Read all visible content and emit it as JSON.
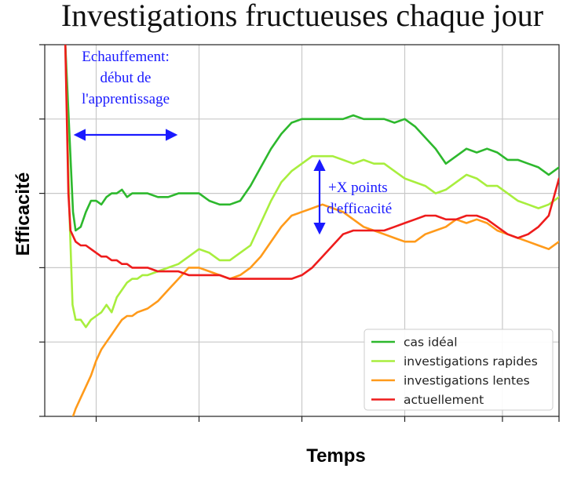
{
  "chart_data": {
    "type": "line",
    "title": "Investigations fructueuses chaque jour",
    "xlabel": "Temps",
    "ylabel": "Efficacité",
    "xlim": [
      0,
      100
    ],
    "ylim": [
      0,
      100
    ],
    "x_ticks": [
      10,
      30,
      50,
      70,
      89,
      100
    ],
    "y_ticks": [
      0,
      20,
      40,
      60,
      80,
      100
    ],
    "x_tick_labels_shown": false,
    "y_tick_labels_shown": false,
    "grid": true,
    "legend_position": "bottom-right",
    "series": [
      {
        "name": "cas idéal",
        "color": "#2db82d",
        "points": [
          [
            4,
            100
          ],
          [
            5.5,
            55
          ],
          [
            6,
            50
          ],
          [
            7,
            51
          ],
          [
            8,
            55
          ],
          [
            9,
            58
          ],
          [
            10,
            58
          ],
          [
            11,
            57
          ],
          [
            12,
            59
          ],
          [
            13,
            60
          ],
          [
            14,
            60
          ],
          [
            15,
            61
          ],
          [
            16,
            59
          ],
          [
            17,
            60
          ],
          [
            18,
            60
          ],
          [
            20,
            60
          ],
          [
            22,
            59
          ],
          [
            24,
            59
          ],
          [
            26,
            60
          ],
          [
            28,
            60
          ],
          [
            30,
            60
          ],
          [
            32,
            58
          ],
          [
            34,
            57
          ],
          [
            36,
            57
          ],
          [
            38,
            58
          ],
          [
            40,
            62
          ],
          [
            42,
            67
          ],
          [
            44,
            72
          ],
          [
            46,
            76
          ],
          [
            48,
            79
          ],
          [
            50,
            80
          ],
          [
            52,
            80
          ],
          [
            54,
            80
          ],
          [
            56,
            80
          ],
          [
            58,
            80
          ],
          [
            60,
            81
          ],
          [
            62,
            80
          ],
          [
            64,
            80
          ],
          [
            66,
            80
          ],
          [
            68,
            79
          ],
          [
            70,
            80
          ],
          [
            72,
            78
          ],
          [
            74,
            75
          ],
          [
            76,
            72
          ],
          [
            78,
            68
          ],
          [
            80,
            70
          ],
          [
            82,
            72
          ],
          [
            84,
            71
          ],
          [
            86,
            72
          ],
          [
            88,
            71
          ],
          [
            90,
            69
          ],
          [
            92,
            69
          ],
          [
            94,
            68
          ],
          [
            96,
            67
          ],
          [
            98,
            65
          ],
          [
            100,
            67
          ]
        ]
      },
      {
        "name": "investigations rapides",
        "color": "#a8ee3e",
        "points": [
          [
            4,
            100
          ],
          [
            4.8,
            55
          ],
          [
            5.4,
            30
          ],
          [
            6,
            26
          ],
          [
            7,
            26
          ],
          [
            8,
            24
          ],
          [
            9,
            26
          ],
          [
            10,
            27
          ],
          [
            11,
            28
          ],
          [
            12,
            30
          ],
          [
            13,
            28
          ],
          [
            14,
            32
          ],
          [
            15,
            34
          ],
          [
            16,
            36
          ],
          [
            17,
            37
          ],
          [
            18,
            37
          ],
          [
            19,
            38
          ],
          [
            20,
            38
          ],
          [
            22,
            39
          ],
          [
            24,
            40
          ],
          [
            26,
            41
          ],
          [
            28,
            43
          ],
          [
            30,
            45
          ],
          [
            32,
            44
          ],
          [
            34,
            42
          ],
          [
            36,
            42
          ],
          [
            38,
            44
          ],
          [
            40,
            46
          ],
          [
            42,
            52
          ],
          [
            44,
            58
          ],
          [
            46,
            63
          ],
          [
            48,
            66
          ],
          [
            50,
            68
          ],
          [
            52,
            70
          ],
          [
            54,
            70
          ],
          [
            56,
            70
          ],
          [
            58,
            69
          ],
          [
            60,
            68
          ],
          [
            62,
            69
          ],
          [
            64,
            68
          ],
          [
            66,
            68
          ],
          [
            68,
            66
          ],
          [
            70,
            64
          ],
          [
            72,
            63
          ],
          [
            74,
            62
          ],
          [
            76,
            60
          ],
          [
            78,
            61
          ],
          [
            80,
            63
          ],
          [
            82,
            65
          ],
          [
            84,
            64
          ],
          [
            86,
            62
          ],
          [
            88,
            62
          ],
          [
            90,
            60
          ],
          [
            92,
            58
          ],
          [
            94,
            57
          ],
          [
            96,
            56
          ],
          [
            98,
            57
          ],
          [
            100,
            59
          ]
        ]
      },
      {
        "name": "investigations lentes",
        "color": "#ff9a1a",
        "points": [
          [
            5.5,
            0
          ],
          [
            6,
            2
          ],
          [
            7,
            5
          ],
          [
            8,
            8
          ],
          [
            9,
            11
          ],
          [
            10,
            15
          ],
          [
            11,
            18
          ],
          [
            12,
            20
          ],
          [
            13,
            22
          ],
          [
            14,
            24
          ],
          [
            15,
            26
          ],
          [
            16,
            27
          ],
          [
            17,
            27
          ],
          [
            18,
            28
          ],
          [
            20,
            29
          ],
          [
            22,
            31
          ],
          [
            24,
            34
          ],
          [
            26,
            37
          ],
          [
            28,
            40
          ],
          [
            30,
            40
          ],
          [
            32,
            39
          ],
          [
            34,
            38
          ],
          [
            36,
            37
          ],
          [
            38,
            38
          ],
          [
            40,
            40
          ],
          [
            42,
            43
          ],
          [
            44,
            47
          ],
          [
            46,
            51
          ],
          [
            48,
            54
          ],
          [
            50,
            55
          ],
          [
            52,
            56
          ],
          [
            54,
            57
          ],
          [
            56,
            56
          ],
          [
            58,
            55
          ],
          [
            60,
            53
          ],
          [
            62,
            51
          ],
          [
            64,
            50
          ],
          [
            66,
            49
          ],
          [
            68,
            48
          ],
          [
            70,
            47
          ],
          [
            72,
            47
          ],
          [
            74,
            49
          ],
          [
            76,
            50
          ],
          [
            78,
            51
          ],
          [
            80,
            53
          ],
          [
            82,
            52
          ],
          [
            84,
            53
          ],
          [
            86,
            52
          ],
          [
            88,
            50
          ],
          [
            90,
            49
          ],
          [
            92,
            48
          ],
          [
            94,
            47
          ],
          [
            96,
            46
          ],
          [
            98,
            45
          ],
          [
            100,
            47
          ]
        ]
      },
      {
        "name": "actuellement",
        "color": "#ee1c1c",
        "points": [
          [
            4,
            100
          ],
          [
            4.6,
            60
          ],
          [
            5,
            50
          ],
          [
            6,
            47
          ],
          [
            7,
            46
          ],
          [
            8,
            46
          ],
          [
            9,
            45
          ],
          [
            10,
            44
          ],
          [
            11,
            43
          ],
          [
            12,
            43
          ],
          [
            13,
            42
          ],
          [
            14,
            42
          ],
          [
            15,
            41
          ],
          [
            16,
            41
          ],
          [
            17,
            40
          ],
          [
            18,
            40
          ],
          [
            20,
            40
          ],
          [
            22,
            39
          ],
          [
            24,
            39
          ],
          [
            26,
            39
          ],
          [
            28,
            38
          ],
          [
            30,
            38
          ],
          [
            32,
            38
          ],
          [
            34,
            38
          ],
          [
            36,
            37
          ],
          [
            38,
            37
          ],
          [
            40,
            37
          ],
          [
            42,
            37
          ],
          [
            44,
            37
          ],
          [
            46,
            37
          ],
          [
            48,
            37
          ],
          [
            50,
            38
          ],
          [
            52,
            40
          ],
          [
            54,
            43
          ],
          [
            56,
            46
          ],
          [
            58,
            49
          ],
          [
            60,
            50
          ],
          [
            62,
            50
          ],
          [
            64,
            50
          ],
          [
            66,
            50
          ],
          [
            68,
            51
          ],
          [
            70,
            52
          ],
          [
            72,
            53
          ],
          [
            74,
            54
          ],
          [
            76,
            54
          ],
          [
            78,
            53
          ],
          [
            80,
            53
          ],
          [
            82,
            54
          ],
          [
            84,
            54
          ],
          [
            86,
            53
          ],
          [
            88,
            51
          ],
          [
            90,
            49
          ],
          [
            92,
            48
          ],
          [
            94,
            49
          ],
          [
            96,
            51
          ],
          [
            98,
            54
          ],
          [
            100,
            64
          ]
        ]
      }
    ],
    "annotations": [
      {
        "lines": [
          "Echauffement:",
          "début de",
          "l'apprentissage"
        ]
      },
      {
        "lines": [
          "+X  points",
          "d'efficacité"
        ]
      }
    ]
  }
}
